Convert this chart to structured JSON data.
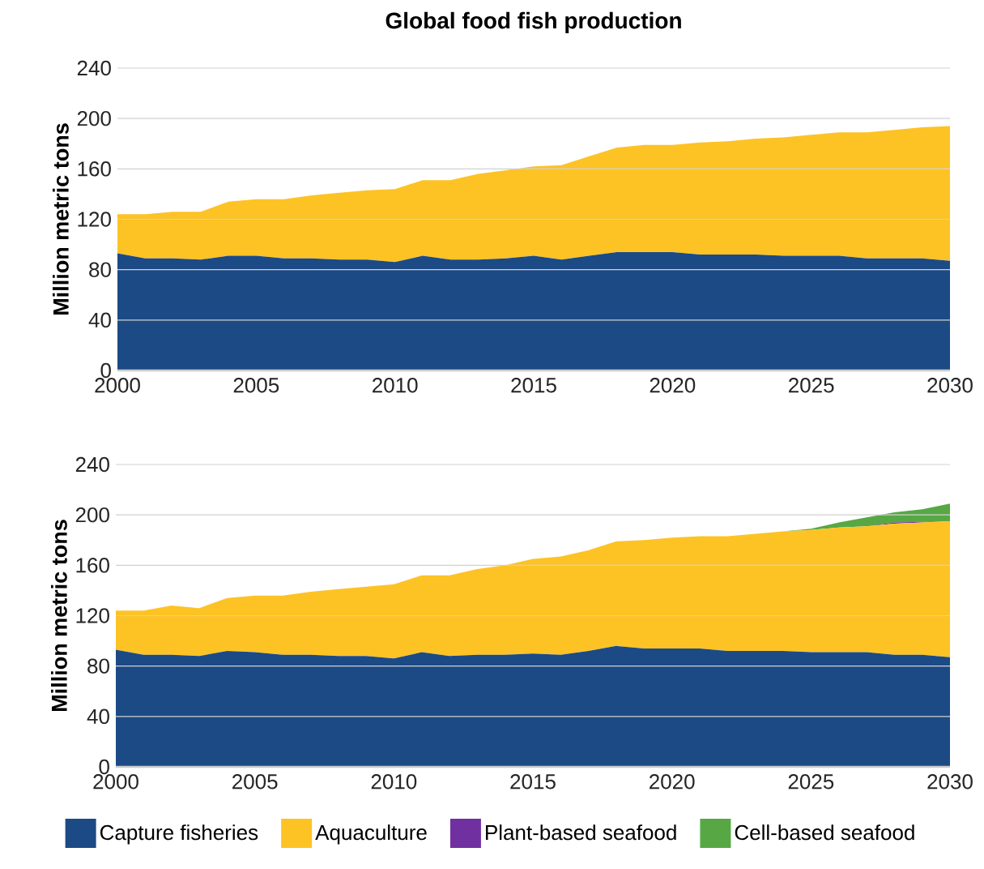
{
  "chart_data": [
    {
      "type": "area",
      "title": "Global food fish production",
      "ylabel": "Million metric tons",
      "stacked": true,
      "x": [
        2000,
        2001,
        2002,
        2003,
        2004,
        2005,
        2006,
        2007,
        2008,
        2009,
        2010,
        2011,
        2012,
        2013,
        2014,
        2015,
        2016,
        2017,
        2018,
        2019,
        2020,
        2021,
        2022,
        2023,
        2024,
        2025,
        2026,
        2027,
        2028,
        2029,
        2030
      ],
      "series": [
        {
          "color": "#1c4a85",
          "values": [
            93,
            89,
            89,
            88,
            91,
            91,
            89,
            89,
            88,
            88,
            86,
            91,
            88,
            88,
            89,
            91,
            88,
            91,
            94,
            94,
            94,
            92,
            92,
            92,
            91,
            91,
            91,
            89,
            89,
            89,
            87
          ]
        },
        {
          "color": "#fdc325",
          "values": [
            31,
            35,
            37,
            38,
            43,
            45,
            47,
            50,
            53,
            55,
            58,
            60,
            63,
            68,
            70,
            71,
            75,
            79,
            83,
            85,
            85,
            89,
            90,
            92,
            94,
            96,
            98,
            100,
            102,
            104,
            107
          ]
        }
      ],
      "xlim": [
        2000,
        2030
      ],
      "xticks": [
        2000,
        2005,
        2010,
        2015,
        2020,
        2025,
        2030
      ],
      "ylim": [
        0,
        240
      ],
      "yticks": [
        0,
        40,
        80,
        120,
        160,
        200,
        240
      ],
      "grid": "y",
      "legend": false
    },
    {
      "type": "area",
      "ylabel": "Million metric tons",
      "stacked": true,
      "x": [
        2000,
        2001,
        2002,
        2003,
        2004,
        2005,
        2006,
        2007,
        2008,
        2009,
        2010,
        2011,
        2012,
        2013,
        2014,
        2015,
        2016,
        2017,
        2018,
        2019,
        2020,
        2021,
        2022,
        2023,
        2024,
        2025,
        2026,
        2027,
        2028,
        2029,
        2030
      ],
      "series": [
        {
          "name": "Capture fisheries",
          "color": "#1c4a85",
          "values": [
            93,
            89,
            89,
            88,
            92,
            91,
            89,
            89,
            88,
            88,
            86,
            91,
            88,
            89,
            89,
            90,
            89,
            92,
            96,
            94,
            94,
            94,
            92,
            92,
            92,
            91,
            91,
            91,
            89,
            89,
            87
          ]
        },
        {
          "name": "Aquaculture",
          "color": "#fdc325",
          "values": [
            31,
            35,
            39,
            38,
            42,
            45,
            47,
            50,
            53,
            55,
            59,
            61,
            64,
            68,
            71,
            75,
            78,
            80,
            83,
            86,
            88,
            89,
            91,
            93,
            95,
            97,
            99,
            100,
            104,
            105,
            108
          ]
        },
        {
          "name": "Plant-based seafood",
          "color": "#7030a0",
          "values": [
            0,
            0,
            0,
            0,
            0,
            0,
            0,
            0,
            0,
            0,
            0,
            0,
            0,
            0,
            0,
            0,
            0,
            0,
            0,
            0,
            0,
            0,
            0,
            0,
            0,
            0,
            0,
            0,
            1,
            0.5,
            0
          ]
        },
        {
          "name": "Cell-based seafood",
          "color": "#57a845",
          "values": [
            0,
            0,
            0,
            0,
            0,
            0,
            0,
            0,
            0,
            0,
            0,
            0,
            0,
            0,
            0,
            0,
            0,
            0,
            0,
            0,
            0,
            0,
            0,
            0,
            0,
            1,
            4,
            7,
            8,
            10,
            14
          ]
        }
      ],
      "xlim": [
        2000,
        2030
      ],
      "xticks": [
        2000,
        2005,
        2010,
        2015,
        2020,
        2025,
        2030
      ],
      "ylim": [
        0,
        240
      ],
      "yticks": [
        0,
        40,
        80,
        120,
        160,
        200,
        240
      ],
      "grid": "y",
      "legend": "bottom"
    }
  ]
}
